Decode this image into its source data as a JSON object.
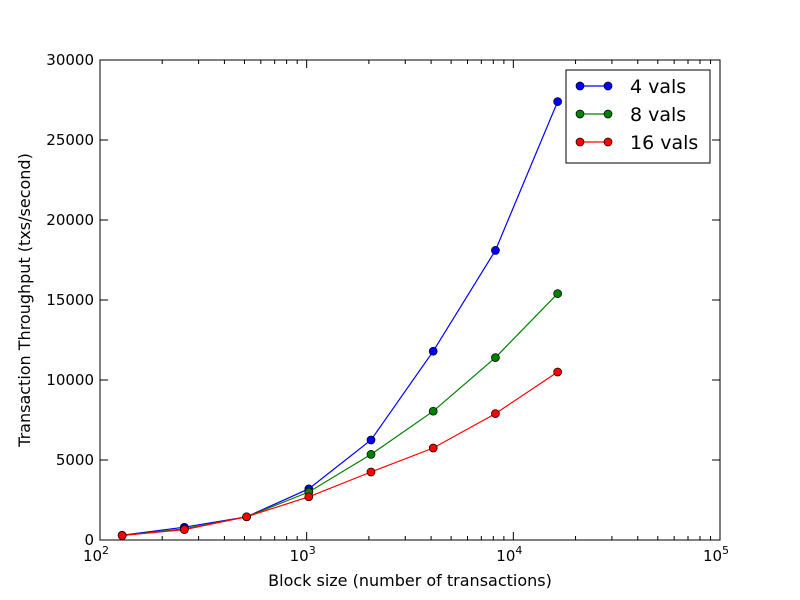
{
  "chart_data": {
    "type": "line",
    "title": "",
    "xlabel": "Block size (number of transactions)",
    "ylabel": "Transaction Throughput (txs/second)",
    "xscale": "log",
    "xlim": [
      100,
      100000
    ],
    "ylim": [
      0,
      30000
    ],
    "x": [
      128,
      256,
      512,
      1024,
      2048,
      4096,
      8192,
      16384
    ],
    "x_ticks": [
      {
        "value": 100,
        "base": "10",
        "exp": "2"
      },
      {
        "value": 1000,
        "base": "10",
        "exp": "3"
      },
      {
        "value": 10000,
        "base": "10",
        "exp": "4"
      },
      {
        "value": 100000,
        "base": "10",
        "exp": "5"
      }
    ],
    "y_ticks": [
      {
        "value": 0,
        "label": "0"
      },
      {
        "value": 5000,
        "label": "5000"
      },
      {
        "value": 10000,
        "label": "10000"
      },
      {
        "value": 15000,
        "label": "15000"
      },
      {
        "value": 20000,
        "label": "20000"
      },
      {
        "value": 25000,
        "label": "25000"
      },
      {
        "value": 30000,
        "label": "30000"
      }
    ],
    "series": [
      {
        "name": "4 vals",
        "color": "#0000ff",
        "values": [
          300,
          800,
          1450,
          3200,
          6250,
          11800,
          18100,
          27400
        ]
      },
      {
        "name": "8 vals",
        "color": "#008000",
        "values": [
          280,
          700,
          1450,
          3000,
          5350,
          8050,
          11400,
          15400
        ]
      },
      {
        "name": "16 vals",
        "color": "#ff0000",
        "values": [
          280,
          650,
          1450,
          2700,
          4250,
          5750,
          7900,
          10500
        ]
      }
    ],
    "grid": false,
    "legend": "top-right"
  }
}
